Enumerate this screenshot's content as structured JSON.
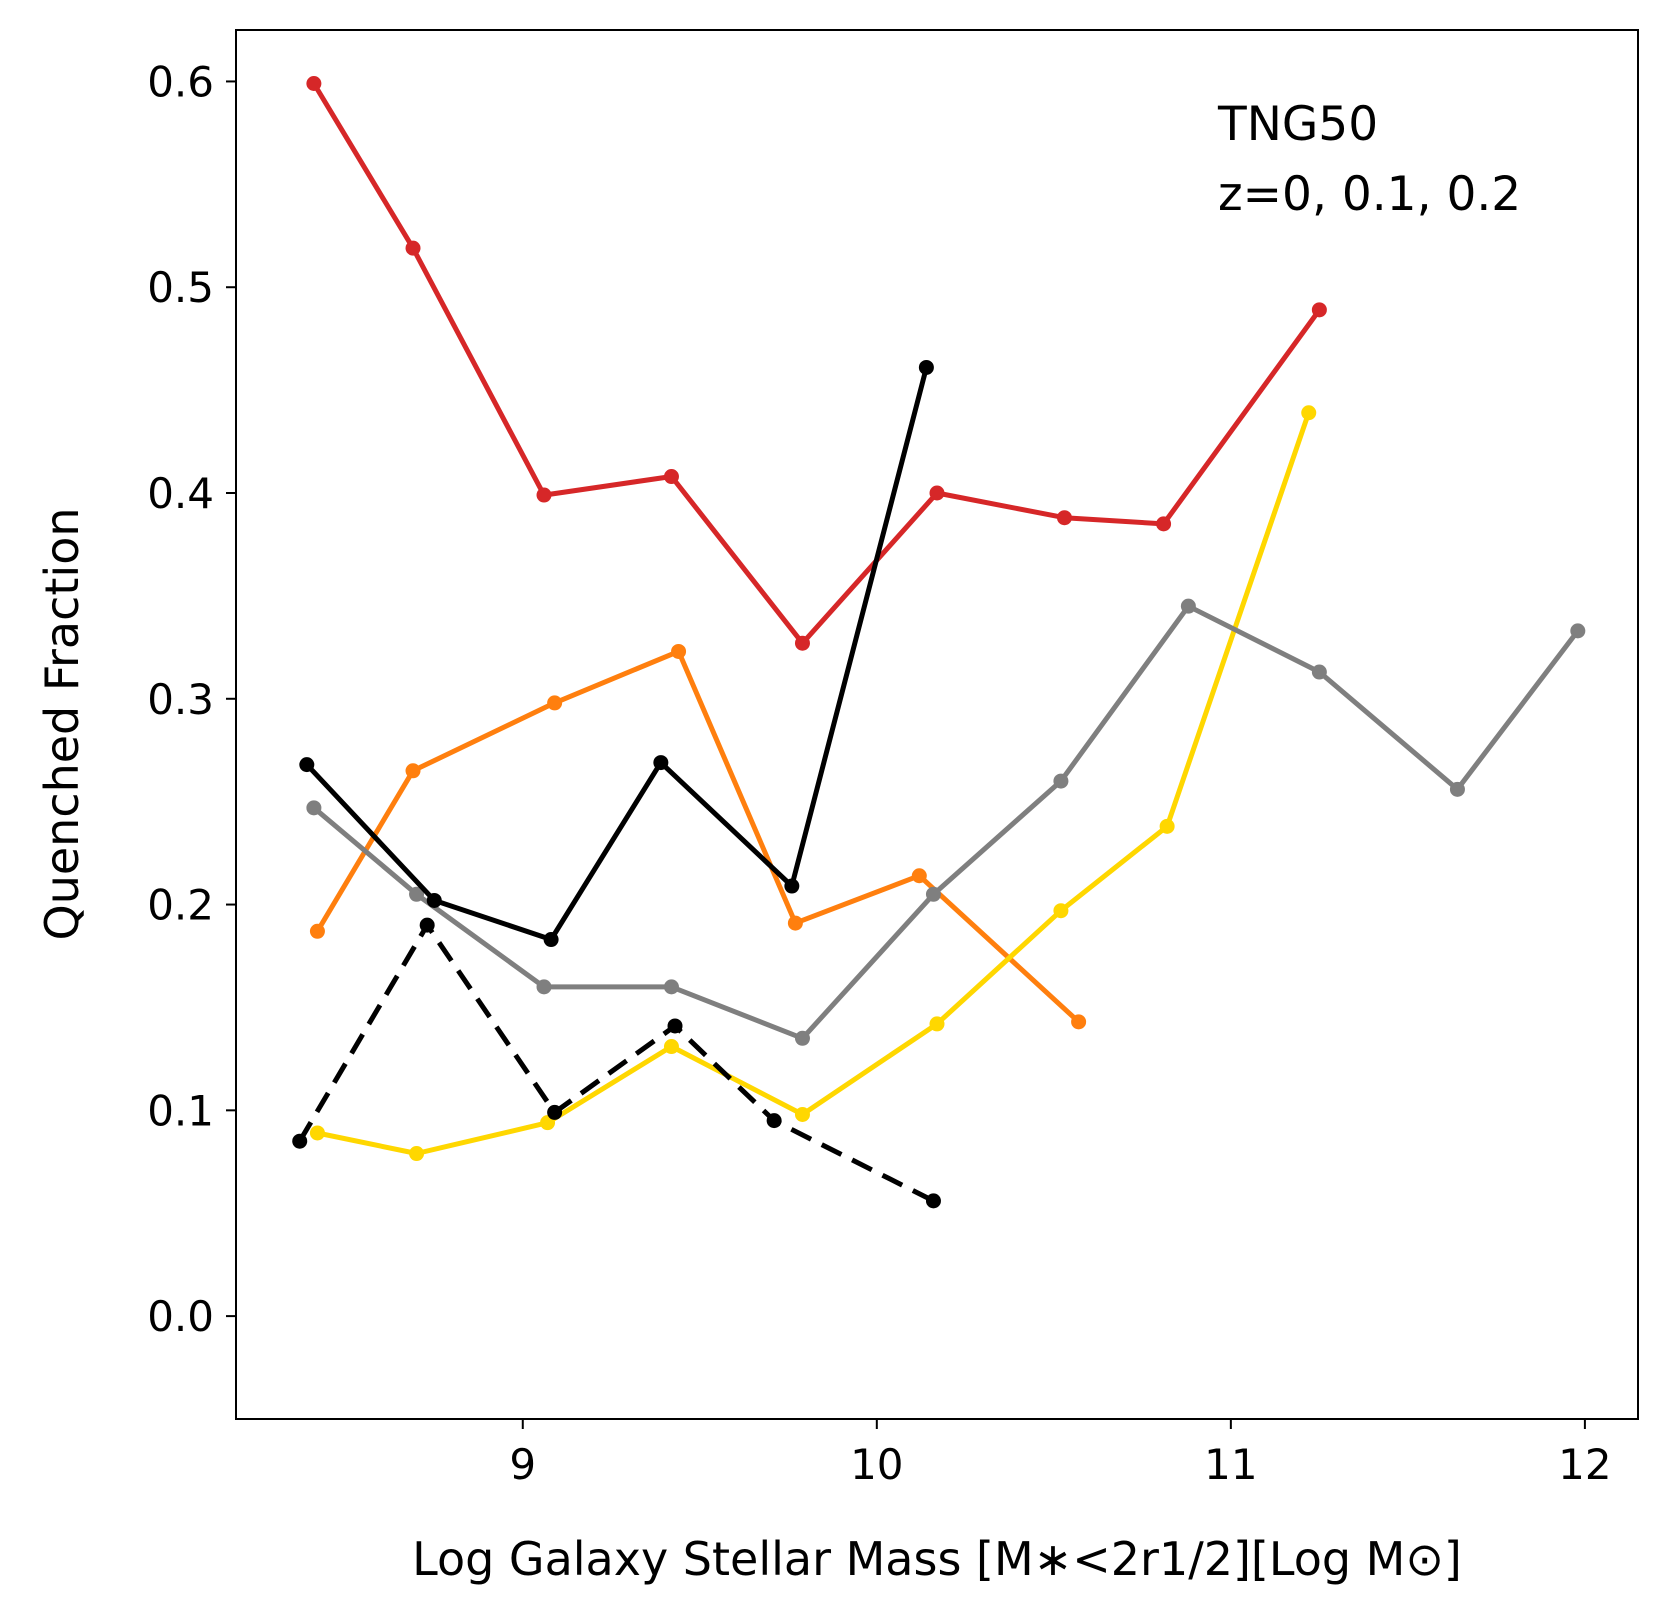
{
  "chart_data": {
    "type": "line",
    "xlabel": "Log Galaxy Stellar Mass [M∗<2r1/2][Log M⊙]",
    "ylabel": "Quenched Fraction",
    "annotation": [
      "TNG50",
      "z=0, 0.1, 0.2"
    ],
    "xlim": [
      8.19,
      12.15
    ],
    "ylim": [
      -0.05,
      0.625
    ],
    "xticks": [
      9,
      10,
      11,
      12
    ],
    "xtick_labels": [
      "9",
      "10",
      "11",
      "12"
    ],
    "yticks": [
      0.0,
      0.1,
      0.2,
      0.3,
      0.4,
      0.5,
      0.6
    ],
    "ytick_labels": [
      "0.0",
      "0.1",
      "0.2",
      "0.3",
      "0.4",
      "0.5",
      "0.6"
    ],
    "grid": false,
    "series": [
      {
        "name": "red",
        "color": "#d62728",
        "dash": "solid",
        "x": [
          8.41,
          8.69,
          9.06,
          9.42,
          9.79,
          10.17,
          10.53,
          10.81,
          11.25
        ],
        "y": [
          0.599,
          0.519,
          0.399,
          0.408,
          0.327,
          0.4,
          0.388,
          0.385,
          0.489
        ]
      },
      {
        "name": "orange",
        "color": "#ff7f0e",
        "dash": "solid",
        "x": [
          8.42,
          8.69,
          9.09,
          9.44,
          9.77,
          10.12,
          10.57
        ],
        "y": [
          0.187,
          0.265,
          0.298,
          0.323,
          0.191,
          0.214,
          0.143
        ]
      },
      {
        "name": "gold",
        "color": "#ffd700",
        "dash": "solid",
        "x": [
          8.42,
          8.7,
          9.07,
          9.42,
          9.79,
          10.17,
          10.52,
          10.82,
          11.22
        ],
        "y": [
          0.089,
          0.079,
          0.094,
          0.131,
          0.098,
          0.142,
          0.197,
          0.238,
          0.439
        ]
      },
      {
        "name": "gray",
        "color": "#7f7f7f",
        "dash": "solid",
        "x": [
          8.41,
          8.7,
          9.06,
          9.42,
          9.79,
          10.16,
          10.52,
          10.88,
          11.25,
          11.64,
          11.98
        ],
        "y": [
          0.247,
          0.205,
          0.16,
          0.16,
          0.135,
          0.205,
          0.26,
          0.345,
          0.313,
          0.256,
          0.333
        ]
      },
      {
        "name": "black",
        "color": "#000000",
        "dash": "solid",
        "x": [
          8.39,
          8.75,
          9.08,
          9.39,
          9.76,
          10.14
        ],
        "y": [
          0.268,
          0.202,
          0.183,
          0.269,
          0.209,
          0.461
        ]
      },
      {
        "name": "black-dashed",
        "color": "#000000",
        "dash": "dashed",
        "x": [
          8.37,
          8.73,
          9.09,
          9.43,
          9.71,
          10.16
        ],
        "y": [
          0.085,
          0.19,
          0.099,
          0.141,
          0.095,
          0.056
        ]
      }
    ]
  }
}
